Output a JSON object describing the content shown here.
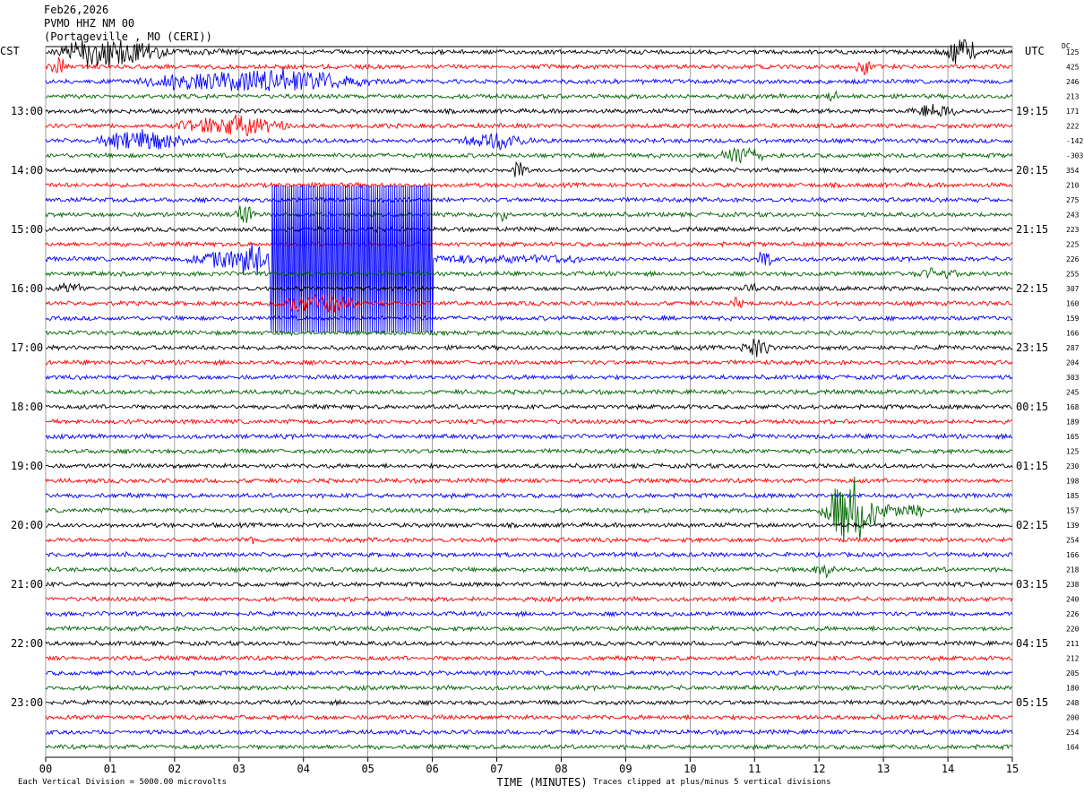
{
  "header": {
    "date": "Feb26,2026",
    "station": "PVMO HHZ NM 00",
    "location": "(Portageville , MO (CERI))"
  },
  "left_zone": "CST",
  "right_zone": "UTC",
  "dc_label": "DC",
  "footer": {
    "scale_note": "Each Vertical Division = 5000.00 microvolts",
    "clip_note": "Traces clipped at plus/minus 5 vertical divisions"
  },
  "chart_data": {
    "type": "helicorder",
    "title": "",
    "xlabel": "TIME (MINUTES)",
    "xlim": [
      0,
      15
    ],
    "x_ticks": [
      "00",
      "01",
      "02",
      "03",
      "04",
      "05",
      "06",
      "07",
      "08",
      "09",
      "10",
      "11",
      "12",
      "13",
      "14",
      "15"
    ],
    "grid": "vertical lines at each minute",
    "trace_colors": [
      "#000000",
      "#ff0000",
      "#0000ff",
      "#006400"
    ],
    "left_hour_labels": [
      "13:00",
      "14:00",
      "15:00",
      "16:00",
      "17:00",
      "18:00",
      "19:00",
      "20:00",
      "21:00",
      "22:00",
      "23:00"
    ],
    "right_hour_labels": [
      "19:15",
      "20:15",
      "21:15",
      "22:15",
      "23:15",
      "00:15",
      "01:15",
      "02:15",
      "03:15",
      "04:15",
      "05:15"
    ],
    "hour_label_first_trace": 4,
    "dc_offsets": [
      "125",
      "425",
      "246",
      "213",
      "171",
      "222",
      "-142",
      "-303",
      "354",
      "210",
      "275",
      "243",
      "223",
      "225",
      "226",
      "255",
      "307",
      "160",
      "159",
      "166",
      "287",
      "204",
      "303",
      "245",
      "168",
      "189",
      "165",
      "125",
      "230",
      "198",
      "185",
      "157",
      "139",
      "254",
      "166",
      "218",
      "238",
      "240",
      "226",
      "220",
      "211",
      "212",
      "205",
      "180",
      "248",
      "200",
      "254",
      "164"
    ],
    "events": [
      {
        "trace": 0,
        "start_min": 0.0,
        "end_min": 3.3,
        "amp": 22
      },
      {
        "trace": 0,
        "start_min": 13.8,
        "end_min": 15.0,
        "amp": 18
      },
      {
        "trace": 1,
        "start_min": 0.0,
        "end_min": 0.6,
        "amp": 14
      },
      {
        "trace": 1,
        "start_min": 12.5,
        "end_min": 13.1,
        "amp": 12
      },
      {
        "trace": 2,
        "start_min": 1.0,
        "end_min": 8.2,
        "amp": 16
      },
      {
        "trace": 3,
        "start_min": 12.1,
        "end_min": 12.5,
        "amp": 8
      },
      {
        "trace": 4,
        "start_min": 13.3,
        "end_min": 14.9,
        "amp": 10
      },
      {
        "trace": 5,
        "start_min": 1.8,
        "end_min": 5.3,
        "amp": 14
      },
      {
        "trace": 6,
        "start_min": 0.6,
        "end_min": 3.5,
        "amp": 14
      },
      {
        "trace": 6,
        "start_min": 6.3,
        "end_min": 8.5,
        "amp": 12
      },
      {
        "trace": 7,
        "start_min": 10.3,
        "end_min": 11.8,
        "amp": 14
      },
      {
        "trace": 8,
        "start_min": 7.2,
        "end_min": 7.7,
        "amp": 12
      },
      {
        "trace": 10,
        "start_min": 1.3,
        "end_min": 1.5,
        "amp": 8
      },
      {
        "trace": 11,
        "start_min": 2.9,
        "end_min": 3.5,
        "amp": 14
      },
      {
        "trace": 11,
        "start_min": 7.0,
        "end_min": 7.3,
        "amp": 10
      },
      {
        "trace": 14,
        "start_min": 3.5,
        "end_min": 6.0,
        "amp": 82,
        "clipped": true
      },
      {
        "trace": 14,
        "start_min": 2.2,
        "end_min": 8.3,
        "amp": 30
      },
      {
        "trace": 14,
        "start_min": 11.0,
        "end_min": 11.5,
        "amp": 14
      },
      {
        "trace": 15,
        "start_min": 13.3,
        "end_min": 15.0,
        "amp": 8
      },
      {
        "trace": 16,
        "start_min": 0.0,
        "end_min": 1.2,
        "amp": 8
      },
      {
        "trace": 16,
        "start_min": 10.8,
        "end_min": 11.3,
        "amp": 9
      },
      {
        "trace": 17,
        "start_min": 3.4,
        "end_min": 6.0,
        "amp": 14
      },
      {
        "trace": 17,
        "start_min": 10.6,
        "end_min": 11.0,
        "amp": 10
      },
      {
        "trace": 20,
        "start_min": 10.7,
        "end_min": 11.8,
        "amp": 12
      },
      {
        "trace": 31,
        "start_min": 12.0,
        "end_min": 13.6,
        "amp": 46
      },
      {
        "trace": 33,
        "start_min": 3.1,
        "end_min": 3.5,
        "amp": 6
      },
      {
        "trace": 34,
        "start_min": 1.0,
        "end_min": 1.5,
        "amp": 6
      },
      {
        "trace": 35,
        "start_min": 11.8,
        "end_min": 12.6,
        "amp": 10
      }
    ]
  }
}
